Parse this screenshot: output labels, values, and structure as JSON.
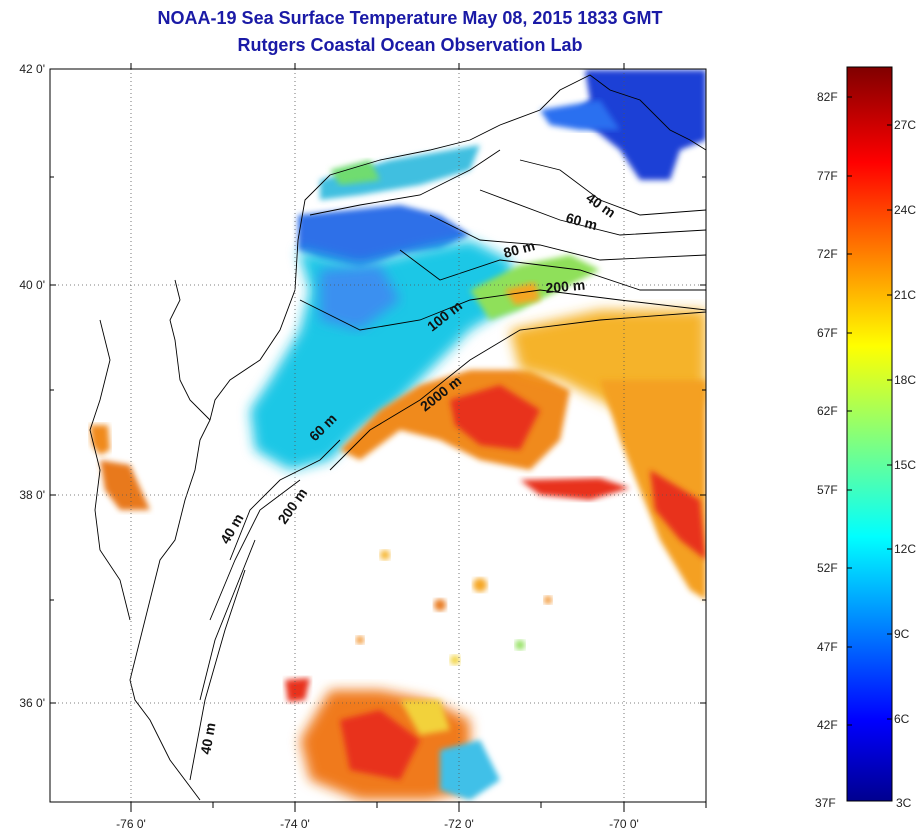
{
  "header": {
    "title": "NOAA-19 Sea Surface Temperature May 08, 2015 1833 GMT",
    "subtitle": "Rutgers Coastal Ocean Observation Lab"
  },
  "map": {
    "lat_labels": [
      "42 0'",
      "40 0'",
      "38 0'",
      "36 0'"
    ],
    "lon_labels": [
      "-76 0'",
      "-74 0'",
      "-72 0'",
      "-70 0'"
    ],
    "isobath_labels": [
      "40 m",
      "60 m",
      "80 m",
      "200 m",
      "100 m",
      "2000 m",
      "60 m",
      "40 m",
      "200 m",
      "40 m"
    ]
  },
  "colorbar": {
    "fahrenheit_labels": [
      "82F",
      "77F",
      "72F",
      "67F",
      "62F",
      "57F",
      "52F",
      "47F",
      "42F",
      "37F"
    ],
    "celsius_labels": [
      "27C",
      "24C",
      "21C",
      "18C",
      "15C",
      "12C",
      "9C",
      "6C",
      "3C"
    ],
    "range_c": [
      3,
      28
    ],
    "colormap": "jet"
  },
  "colors": {
    "title": "#1a1aa6",
    "land_outline": "#000000",
    "warm": "#e8321c",
    "mid": "#f5a623",
    "cool": "#1fc7e6",
    "cold": "#1a3fd6"
  }
}
